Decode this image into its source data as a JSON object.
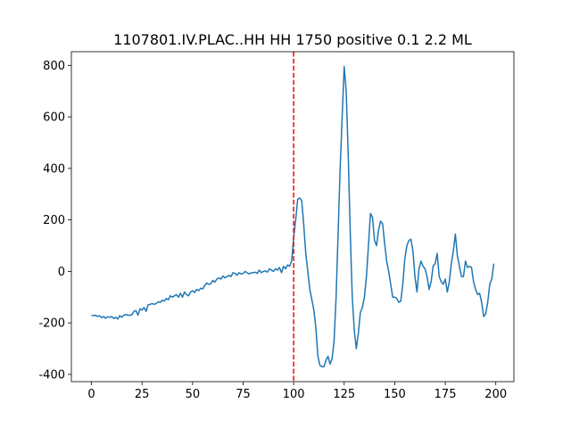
{
  "chart_data": {
    "type": "line",
    "title": "1107801.IV.PLAC..HH HH 1750 positive 0.1 2.2 ML",
    "x": [
      0,
      1,
      2,
      3,
      4,
      5,
      6,
      7,
      8,
      9,
      10,
      11,
      12,
      13,
      14,
      15,
      16,
      17,
      18,
      19,
      20,
      21,
      22,
      23,
      24,
      25,
      26,
      27,
      28,
      29,
      30,
      31,
      32,
      33,
      34,
      35,
      36,
      37,
      38,
      39,
      40,
      41,
      42,
      43,
      44,
      45,
      46,
      47,
      48,
      49,
      50,
      51,
      52,
      53,
      54,
      55,
      56,
      57,
      58,
      59,
      60,
      61,
      62,
      63,
      64,
      65,
      66,
      67,
      68,
      69,
      70,
      71,
      72,
      73,
      74,
      75,
      76,
      77,
      78,
      79,
      80,
      81,
      82,
      83,
      84,
      85,
      86,
      87,
      88,
      89,
      90,
      91,
      92,
      93,
      94,
      95,
      96,
      97,
      98,
      99,
      100,
      101,
      102,
      103,
      104,
      105,
      106,
      107,
      108,
      109,
      110,
      111,
      112,
      113,
      114,
      115,
      116,
      117,
      118,
      119,
      120,
      121,
      122,
      123,
      124,
      125,
      126,
      127,
      128,
      129,
      130,
      131,
      132,
      133,
      134,
      135,
      136,
      137,
      138,
      139,
      140,
      141,
      142,
      143,
      144,
      145,
      146,
      147,
      148,
      149,
      150,
      151,
      152,
      153,
      154,
      155,
      156,
      157,
      158,
      159,
      160,
      161,
      162,
      163,
      164,
      165,
      166,
      167,
      168,
      169,
      170,
      171,
      172,
      173,
      174,
      175,
      176,
      177,
      178,
      179,
      180,
      181,
      182,
      183,
      184,
      185,
      186,
      187,
      188,
      189,
      190,
      191,
      192,
      193,
      194,
      195,
      196,
      197,
      198,
      199
    ],
    "series": [
      {
        "color": "#1f77b4",
        "values": [
          -170,
          -172,
          -170,
          -175,
          -172,
          -180,
          -175,
          -182,
          -176,
          -178,
          -175,
          -183,
          -178,
          -185,
          -172,
          -178,
          -170,
          -168,
          -170,
          -170,
          -168,
          -155,
          -152,
          -170,
          -145,
          -150,
          -140,
          -155,
          -130,
          -128,
          -125,
          -128,
          -125,
          -118,
          -120,
          -112,
          -115,
          -105,
          -110,
          -95,
          -100,
          -95,
          -90,
          -100,
          -85,
          -100,
          -80,
          -90,
          -95,
          -80,
          -75,
          -82,
          -70,
          -75,
          -65,
          -68,
          -55,
          -45,
          -50,
          -48,
          -35,
          -42,
          -30,
          -25,
          -30,
          -18,
          -25,
          -20,
          -15,
          -20,
          -5,
          -8,
          -15,
          -5,
          -10,
          -8,
          0,
          -5,
          -10,
          -5,
          -5,
          -3,
          -8,
          5,
          -5,
          0,
          2,
          -3,
          10,
          5,
          0,
          10,
          5,
          15,
          -5,
          20,
          10,
          25,
          20,
          40,
          130,
          200,
          280,
          285,
          275,
          180,
          70,
          0,
          -70,
          -110,
          -150,
          -220,
          -330,
          -365,
          -370,
          -370,
          -345,
          -330,
          -360,
          -340,
          -270,
          -100,
          150,
          400,
          600,
          795,
          700,
          450,
          150,
          -100,
          -230,
          -300,
          -240,
          -160,
          -140,
          -100,
          -20,
          100,
          225,
          210,
          120,
          100,
          160,
          195,
          185,
          110,
          40,
          0,
          -50,
          -100,
          -100,
          -105,
          -120,
          -115,
          -50,
          50,
          100,
          120,
          125,
          80,
          -20,
          -80,
          10,
          40,
          20,
          10,
          -20,
          -70,
          -40,
          20,
          30,
          70,
          -20,
          -40,
          -50,
          -30,
          -80,
          -40,
          30,
          80,
          145,
          60,
          20,
          -20,
          -20,
          40,
          15,
          20,
          15,
          -40,
          -70,
          -90,
          -85,
          -120,
          -175,
          -165,
          -120,
          -50,
          -30,
          30
        ]
      }
    ],
    "xlim": [
      -9.95,
      208.95
    ],
    "ylim": [
      -428,
      853
    ],
    "xticks": [
      0,
      25,
      50,
      75,
      100,
      125,
      150,
      175,
      200
    ],
    "yticks": [
      -400,
      -200,
      0,
      200,
      400,
      600,
      800
    ],
    "vline": {
      "x": 100,
      "color": "#ff0000"
    }
  }
}
